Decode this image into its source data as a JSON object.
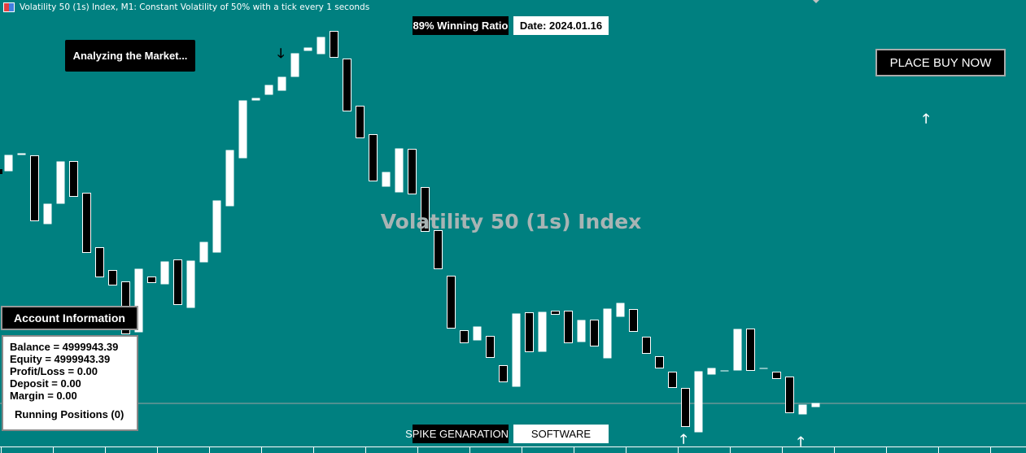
{
  "window_title": "Volatility 50 (1s) Index, M1:  Constant Volatility of 50% with a tick every 1 seconds",
  "watermark": "Volatility 50 (1s) Index",
  "labels": {
    "winning_ratio": "89% Winning Ratio",
    "date": "Date: 2024.01.16",
    "analyzing": "Analyzing the Market...",
    "place_buy": "PLACE BUY NOW",
    "spike": "SPIKE GENARATION",
    "software": "SOFTWARE"
  },
  "account": {
    "header": "Account Information",
    "balance": "Balance = 4999943.39",
    "equity": "Equity = 4999943.39",
    "profit_loss": "Profit/Loss = 0.00",
    "deposit": "Deposit = 0.00",
    "margin": "Margin = 0.00",
    "running_positions": "Running Positions (0)"
  },
  "icons": {
    "buy_arrow": "arrow-up",
    "sell_arrow": "arrow-down"
  },
  "colors": {
    "background": "#008080",
    "bull_candle": "#ffffff",
    "bear_candle": "#000000",
    "watermark": "#a8b4b4"
  }
}
